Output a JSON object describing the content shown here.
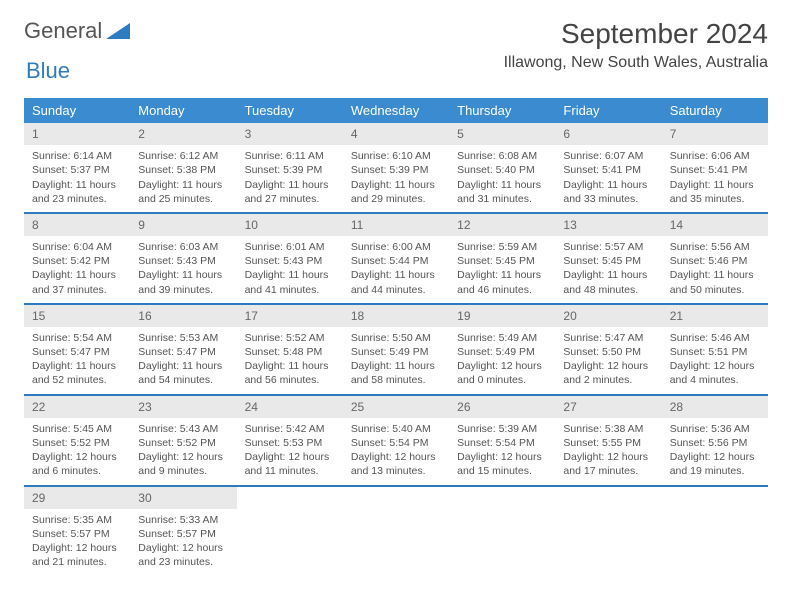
{
  "logo": {
    "text_general": "General",
    "text_blue": "Blue"
  },
  "header": {
    "month_title": "September 2024",
    "location": "Illawong, New South Wales, Australia"
  },
  "colors": {
    "header_bg": "#3b8bd0",
    "header_text": "#ffffff",
    "week_border": "#2f7bbf",
    "daynum_bg": "#e9e9e9",
    "body_text": "#555555"
  },
  "day_names": [
    "Sunday",
    "Monday",
    "Tuesday",
    "Wednesday",
    "Thursday",
    "Friday",
    "Saturday"
  ],
  "weeks": [
    [
      {
        "num": "1",
        "sunrise": "Sunrise: 6:14 AM",
        "sunset": "Sunset: 5:37 PM",
        "daylight": "Daylight: 11 hours and 23 minutes."
      },
      {
        "num": "2",
        "sunrise": "Sunrise: 6:12 AM",
        "sunset": "Sunset: 5:38 PM",
        "daylight": "Daylight: 11 hours and 25 minutes."
      },
      {
        "num": "3",
        "sunrise": "Sunrise: 6:11 AM",
        "sunset": "Sunset: 5:39 PM",
        "daylight": "Daylight: 11 hours and 27 minutes."
      },
      {
        "num": "4",
        "sunrise": "Sunrise: 6:10 AM",
        "sunset": "Sunset: 5:39 PM",
        "daylight": "Daylight: 11 hours and 29 minutes."
      },
      {
        "num": "5",
        "sunrise": "Sunrise: 6:08 AM",
        "sunset": "Sunset: 5:40 PM",
        "daylight": "Daylight: 11 hours and 31 minutes."
      },
      {
        "num": "6",
        "sunrise": "Sunrise: 6:07 AM",
        "sunset": "Sunset: 5:41 PM",
        "daylight": "Daylight: 11 hours and 33 minutes."
      },
      {
        "num": "7",
        "sunrise": "Sunrise: 6:06 AM",
        "sunset": "Sunset: 5:41 PM",
        "daylight": "Daylight: 11 hours and 35 minutes."
      }
    ],
    [
      {
        "num": "8",
        "sunrise": "Sunrise: 6:04 AM",
        "sunset": "Sunset: 5:42 PM",
        "daylight": "Daylight: 11 hours and 37 minutes."
      },
      {
        "num": "9",
        "sunrise": "Sunrise: 6:03 AM",
        "sunset": "Sunset: 5:43 PM",
        "daylight": "Daylight: 11 hours and 39 minutes."
      },
      {
        "num": "10",
        "sunrise": "Sunrise: 6:01 AM",
        "sunset": "Sunset: 5:43 PM",
        "daylight": "Daylight: 11 hours and 41 minutes."
      },
      {
        "num": "11",
        "sunrise": "Sunrise: 6:00 AM",
        "sunset": "Sunset: 5:44 PM",
        "daylight": "Daylight: 11 hours and 44 minutes."
      },
      {
        "num": "12",
        "sunrise": "Sunrise: 5:59 AM",
        "sunset": "Sunset: 5:45 PM",
        "daylight": "Daylight: 11 hours and 46 minutes."
      },
      {
        "num": "13",
        "sunrise": "Sunrise: 5:57 AM",
        "sunset": "Sunset: 5:45 PM",
        "daylight": "Daylight: 11 hours and 48 minutes."
      },
      {
        "num": "14",
        "sunrise": "Sunrise: 5:56 AM",
        "sunset": "Sunset: 5:46 PM",
        "daylight": "Daylight: 11 hours and 50 minutes."
      }
    ],
    [
      {
        "num": "15",
        "sunrise": "Sunrise: 5:54 AM",
        "sunset": "Sunset: 5:47 PM",
        "daylight": "Daylight: 11 hours and 52 minutes."
      },
      {
        "num": "16",
        "sunrise": "Sunrise: 5:53 AM",
        "sunset": "Sunset: 5:47 PM",
        "daylight": "Daylight: 11 hours and 54 minutes."
      },
      {
        "num": "17",
        "sunrise": "Sunrise: 5:52 AM",
        "sunset": "Sunset: 5:48 PM",
        "daylight": "Daylight: 11 hours and 56 minutes."
      },
      {
        "num": "18",
        "sunrise": "Sunrise: 5:50 AM",
        "sunset": "Sunset: 5:49 PM",
        "daylight": "Daylight: 11 hours and 58 minutes."
      },
      {
        "num": "19",
        "sunrise": "Sunrise: 5:49 AM",
        "sunset": "Sunset: 5:49 PM",
        "daylight": "Daylight: 12 hours and 0 minutes."
      },
      {
        "num": "20",
        "sunrise": "Sunrise: 5:47 AM",
        "sunset": "Sunset: 5:50 PM",
        "daylight": "Daylight: 12 hours and 2 minutes."
      },
      {
        "num": "21",
        "sunrise": "Sunrise: 5:46 AM",
        "sunset": "Sunset: 5:51 PM",
        "daylight": "Daylight: 12 hours and 4 minutes."
      }
    ],
    [
      {
        "num": "22",
        "sunrise": "Sunrise: 5:45 AM",
        "sunset": "Sunset: 5:52 PM",
        "daylight": "Daylight: 12 hours and 6 minutes."
      },
      {
        "num": "23",
        "sunrise": "Sunrise: 5:43 AM",
        "sunset": "Sunset: 5:52 PM",
        "daylight": "Daylight: 12 hours and 9 minutes."
      },
      {
        "num": "24",
        "sunrise": "Sunrise: 5:42 AM",
        "sunset": "Sunset: 5:53 PM",
        "daylight": "Daylight: 12 hours and 11 minutes."
      },
      {
        "num": "25",
        "sunrise": "Sunrise: 5:40 AM",
        "sunset": "Sunset: 5:54 PM",
        "daylight": "Daylight: 12 hours and 13 minutes."
      },
      {
        "num": "26",
        "sunrise": "Sunrise: 5:39 AM",
        "sunset": "Sunset: 5:54 PM",
        "daylight": "Daylight: 12 hours and 15 minutes."
      },
      {
        "num": "27",
        "sunrise": "Sunrise: 5:38 AM",
        "sunset": "Sunset: 5:55 PM",
        "daylight": "Daylight: 12 hours and 17 minutes."
      },
      {
        "num": "28",
        "sunrise": "Sunrise: 5:36 AM",
        "sunset": "Sunset: 5:56 PM",
        "daylight": "Daylight: 12 hours and 19 minutes."
      }
    ],
    [
      {
        "num": "29",
        "sunrise": "Sunrise: 5:35 AM",
        "sunset": "Sunset: 5:57 PM",
        "daylight": "Daylight: 12 hours and 21 minutes."
      },
      {
        "num": "30",
        "sunrise": "Sunrise: 5:33 AM",
        "sunset": "Sunset: 5:57 PM",
        "daylight": "Daylight: 12 hours and 23 minutes."
      },
      null,
      null,
      null,
      null,
      null
    ]
  ]
}
